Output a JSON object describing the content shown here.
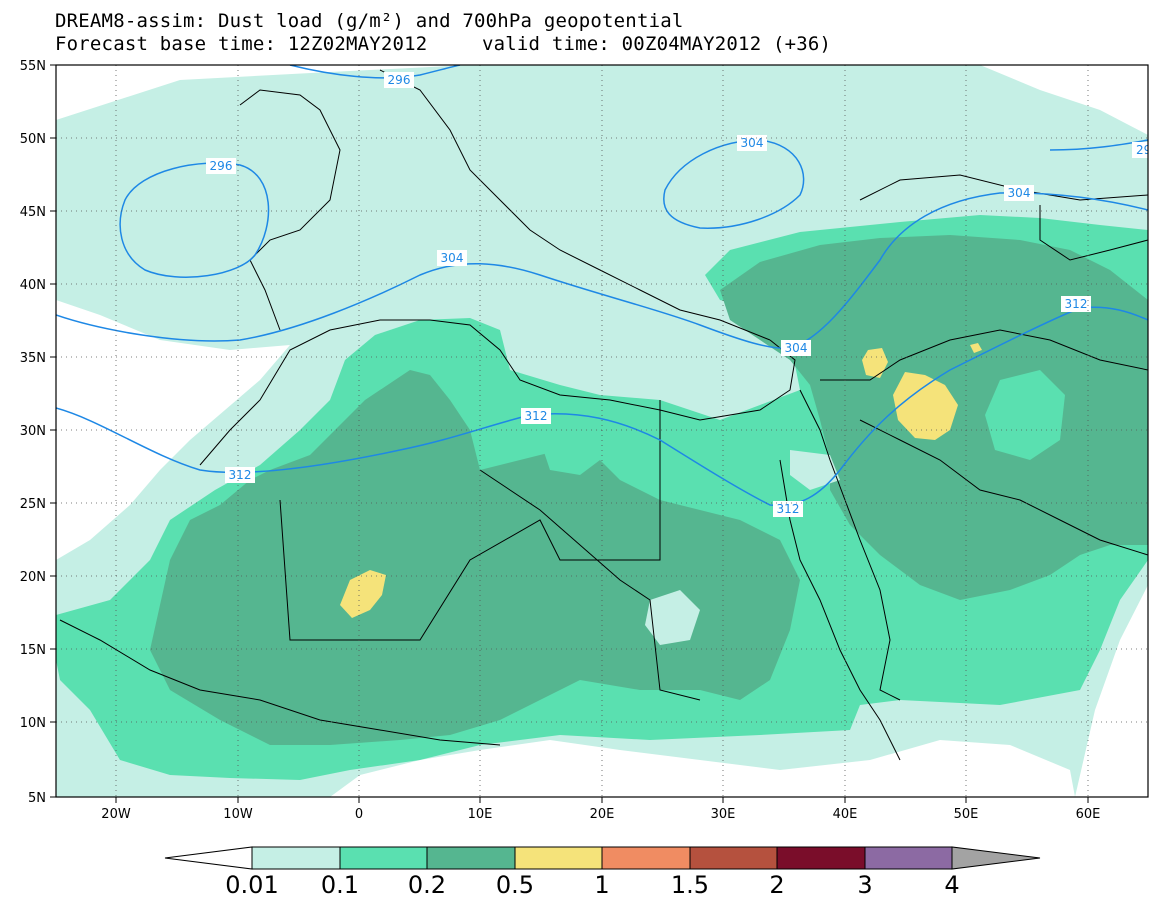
{
  "header": {
    "line1": "DREAM8-assim: Dust load (g/m²) and 700hPa geopotential",
    "line2_base": "Forecast base time: 12Z02MAY2012",
    "line2_valid": "valid time: 00Z04MAY2012 (+36)"
  },
  "map": {
    "lat_labels": [
      "55N",
      "50N",
      "45N",
      "40N",
      "35N",
      "30N",
      "25N",
      "20N",
      "15N",
      "10N",
      "5N"
    ],
    "lon_labels": [
      "20W",
      "10W",
      "0",
      "10E",
      "20E",
      "30E",
      "40E",
      "50E",
      "60E"
    ],
    "contour_labels": [
      "296",
      "296",
      "304",
      "304",
      "304",
      "304",
      "312",
      "312",
      "312",
      "312",
      "29"
    ],
    "fill_colors": {
      "c1": "#c5efe5",
      "c2": "#5ae0b0",
      "c3": "#55b690",
      "c4": "#f5e37a"
    },
    "contour_color": "#1e88e5"
  },
  "colorbar": {
    "labels": [
      "0.01",
      "0.1",
      "0.2",
      "0.5",
      "1",
      "1.5",
      "2",
      "3",
      "4"
    ],
    "colors": [
      "#c5efe5",
      "#5ae0b0",
      "#55b690",
      "#f5e37a",
      "#f08c62",
      "#b5513e",
      "#7a0d2a",
      "#8c6aa3"
    ],
    "end_low_color": "#ffffff",
    "end_high_color": "#a3a3a3"
  }
}
